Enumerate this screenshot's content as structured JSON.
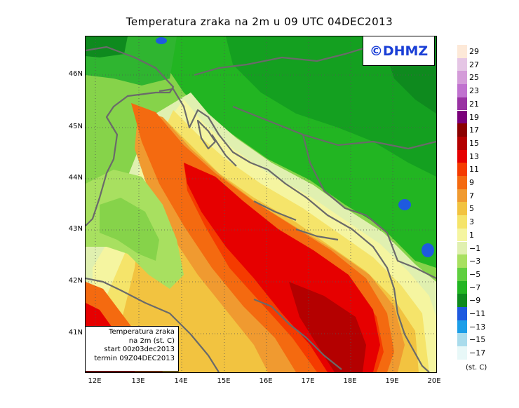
{
  "title": "Temperatura zraka na 2m u 09 UTC 04DEC2013",
  "logo_text": "©DHMZ",
  "info_box": {
    "line1": "Temperatura zraka",
    "line2": "na 2m (st. C)",
    "line3": "start 00z03dec2013",
    "line4": "termin 09Z04DEC2013"
  },
  "y_axis_labels": [
    "46N",
    "45N",
    "44N",
    "43N",
    "42N",
    "41N"
  ],
  "x_axis_labels": [
    "12E",
    "13E",
    "14E",
    "15E",
    "16E",
    "17E",
    "18E",
    "19E",
    "20E"
  ],
  "legend": {
    "units": "(st. C)",
    "labels": [
      "29",
      "27",
      "25",
      "23",
      "21",
      "19",
      "17",
      "15",
      "13",
      "11",
      "9",
      "7",
      "5",
      "3",
      "1",
      "−1",
      "−3",
      "−5",
      "−7",
      "−9",
      "−11",
      "−13",
      "−15",
      "−17"
    ],
    "colors": [
      "#fde9d8",
      "#e5c6e5",
      "#d49cd9",
      "#c072cf",
      "#9932a3",
      "#7a007a",
      "#8b0000",
      "#b40000",
      "#e60000",
      "#f53b00",
      "#f46a10",
      "#f09a30",
      "#f2c340",
      "#f5e46a",
      "#f5f5a0",
      "#e0f0b0",
      "#a8e060",
      "#5fcf3f",
      "#22b522",
      "#0e8a1e",
      "#1e5adf",
      "#1c9ee8",
      "#aadcec",
      "#e8f8f8"
    ]
  },
  "colors": {
    "land_green": "#22b522",
    "sea_red": "#e60000",
    "coastline": "#6a6a6a"
  }
}
